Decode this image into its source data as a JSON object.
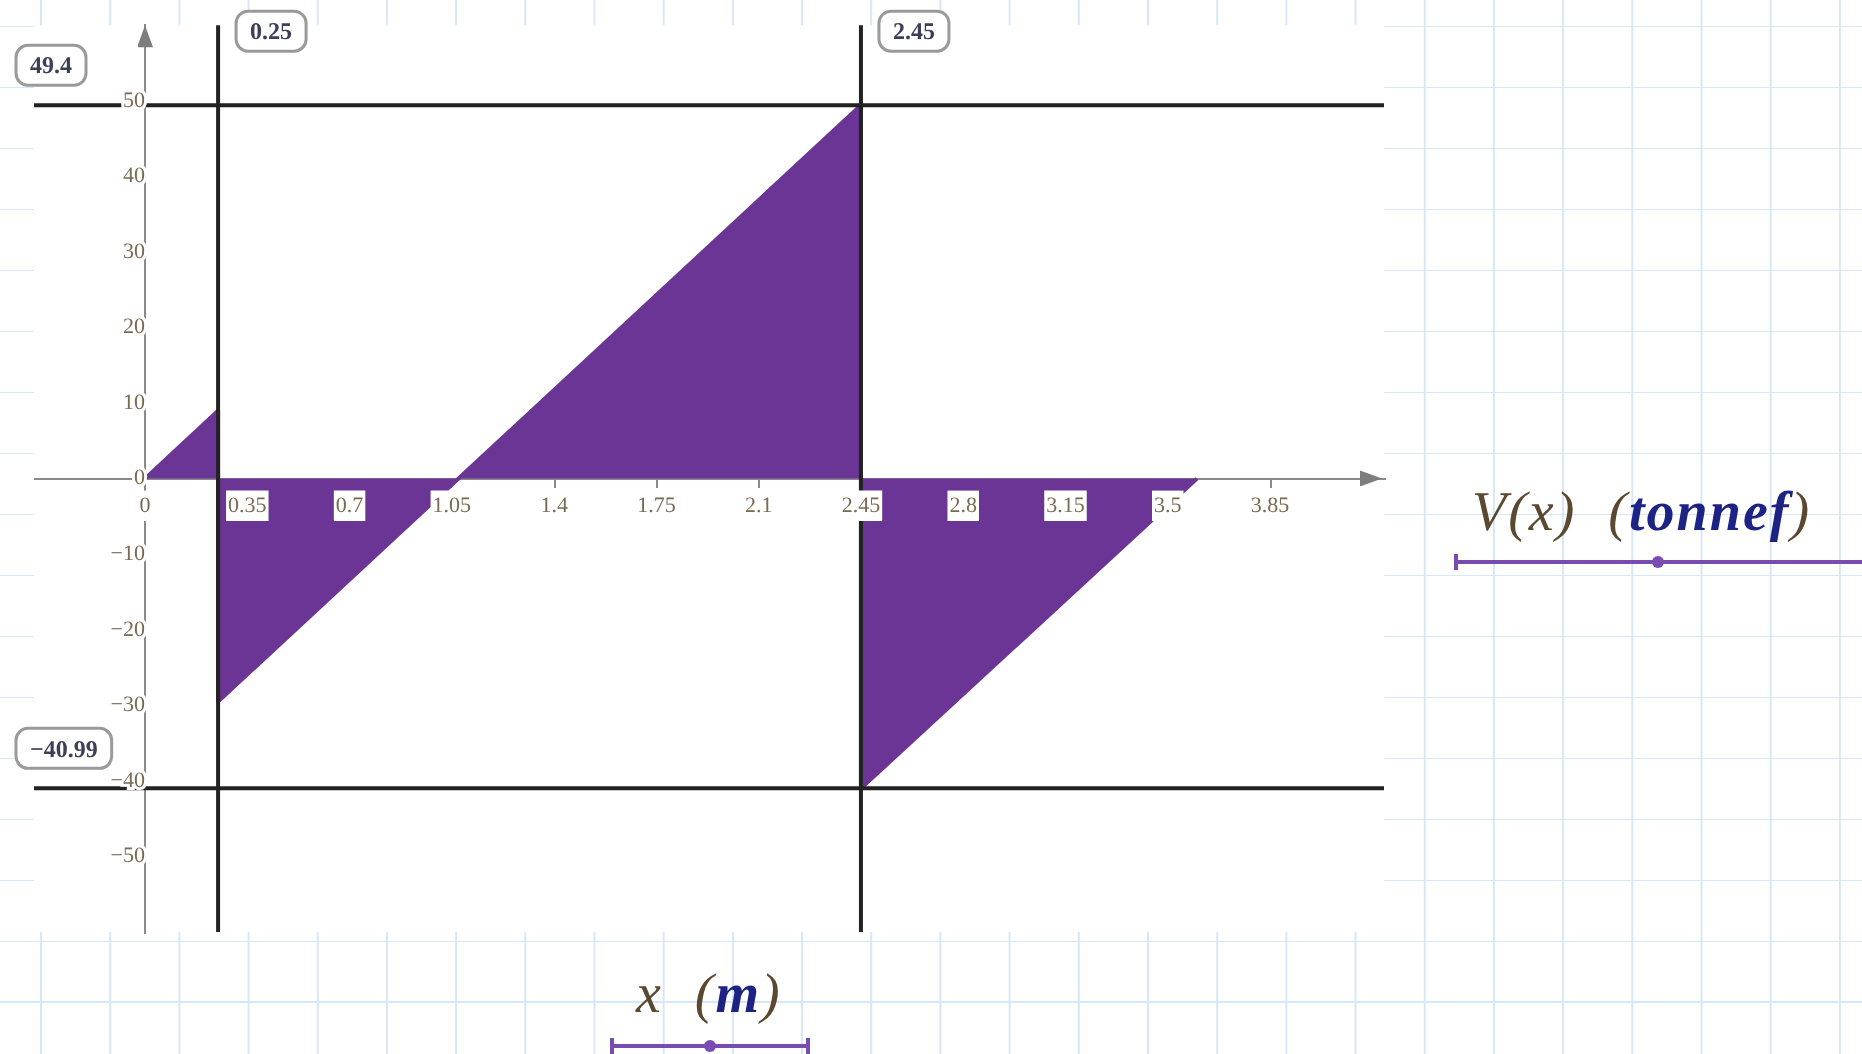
{
  "chart_data": {
    "type": "area",
    "xlabel": "x (m)",
    "ylabel": "V(x) (tonnef)",
    "x": [
      0,
      0.25,
      0.25,
      2.45,
      2.45,
      3.6
    ],
    "values": [
      0,
      9,
      -29.5,
      49.4,
      -40.99,
      0
    ],
    "color": "#6a3595",
    "xlim": [
      -0.38,
      4.24
    ],
    "ylim": [
      -60,
      60
    ],
    "xticks": [
      0,
      0.35,
      0.7,
      1.05,
      1.4,
      1.75,
      2.1,
      2.45,
      2.8,
      3.15,
      3.5,
      3.85
    ],
    "yticks": [
      {
        "value": -50,
        "label": "−50"
      },
      {
        "value": -40,
        "label": "−40"
      },
      {
        "value": -30,
        "label": "−30"
      },
      {
        "value": -20,
        "label": "−20"
      },
      {
        "value": -10,
        "label": "−10"
      },
      0,
      10,
      20,
      30,
      40,
      50
    ],
    "ref_lines": [
      {
        "axis": "y",
        "value": 49.4,
        "label": "49.4",
        "color": "#222222"
      },
      {
        "axis": "y",
        "value": -40.99,
        "label": "−40.99",
        "color": "#222222"
      },
      {
        "axis": "x",
        "value": 0.25,
        "label": "0.25",
        "color": "#222222"
      },
      {
        "axis": "x",
        "value": 2.45,
        "label": "2.45",
        "color": "#222222"
      }
    ],
    "grid": false,
    "legend": false
  }
}
